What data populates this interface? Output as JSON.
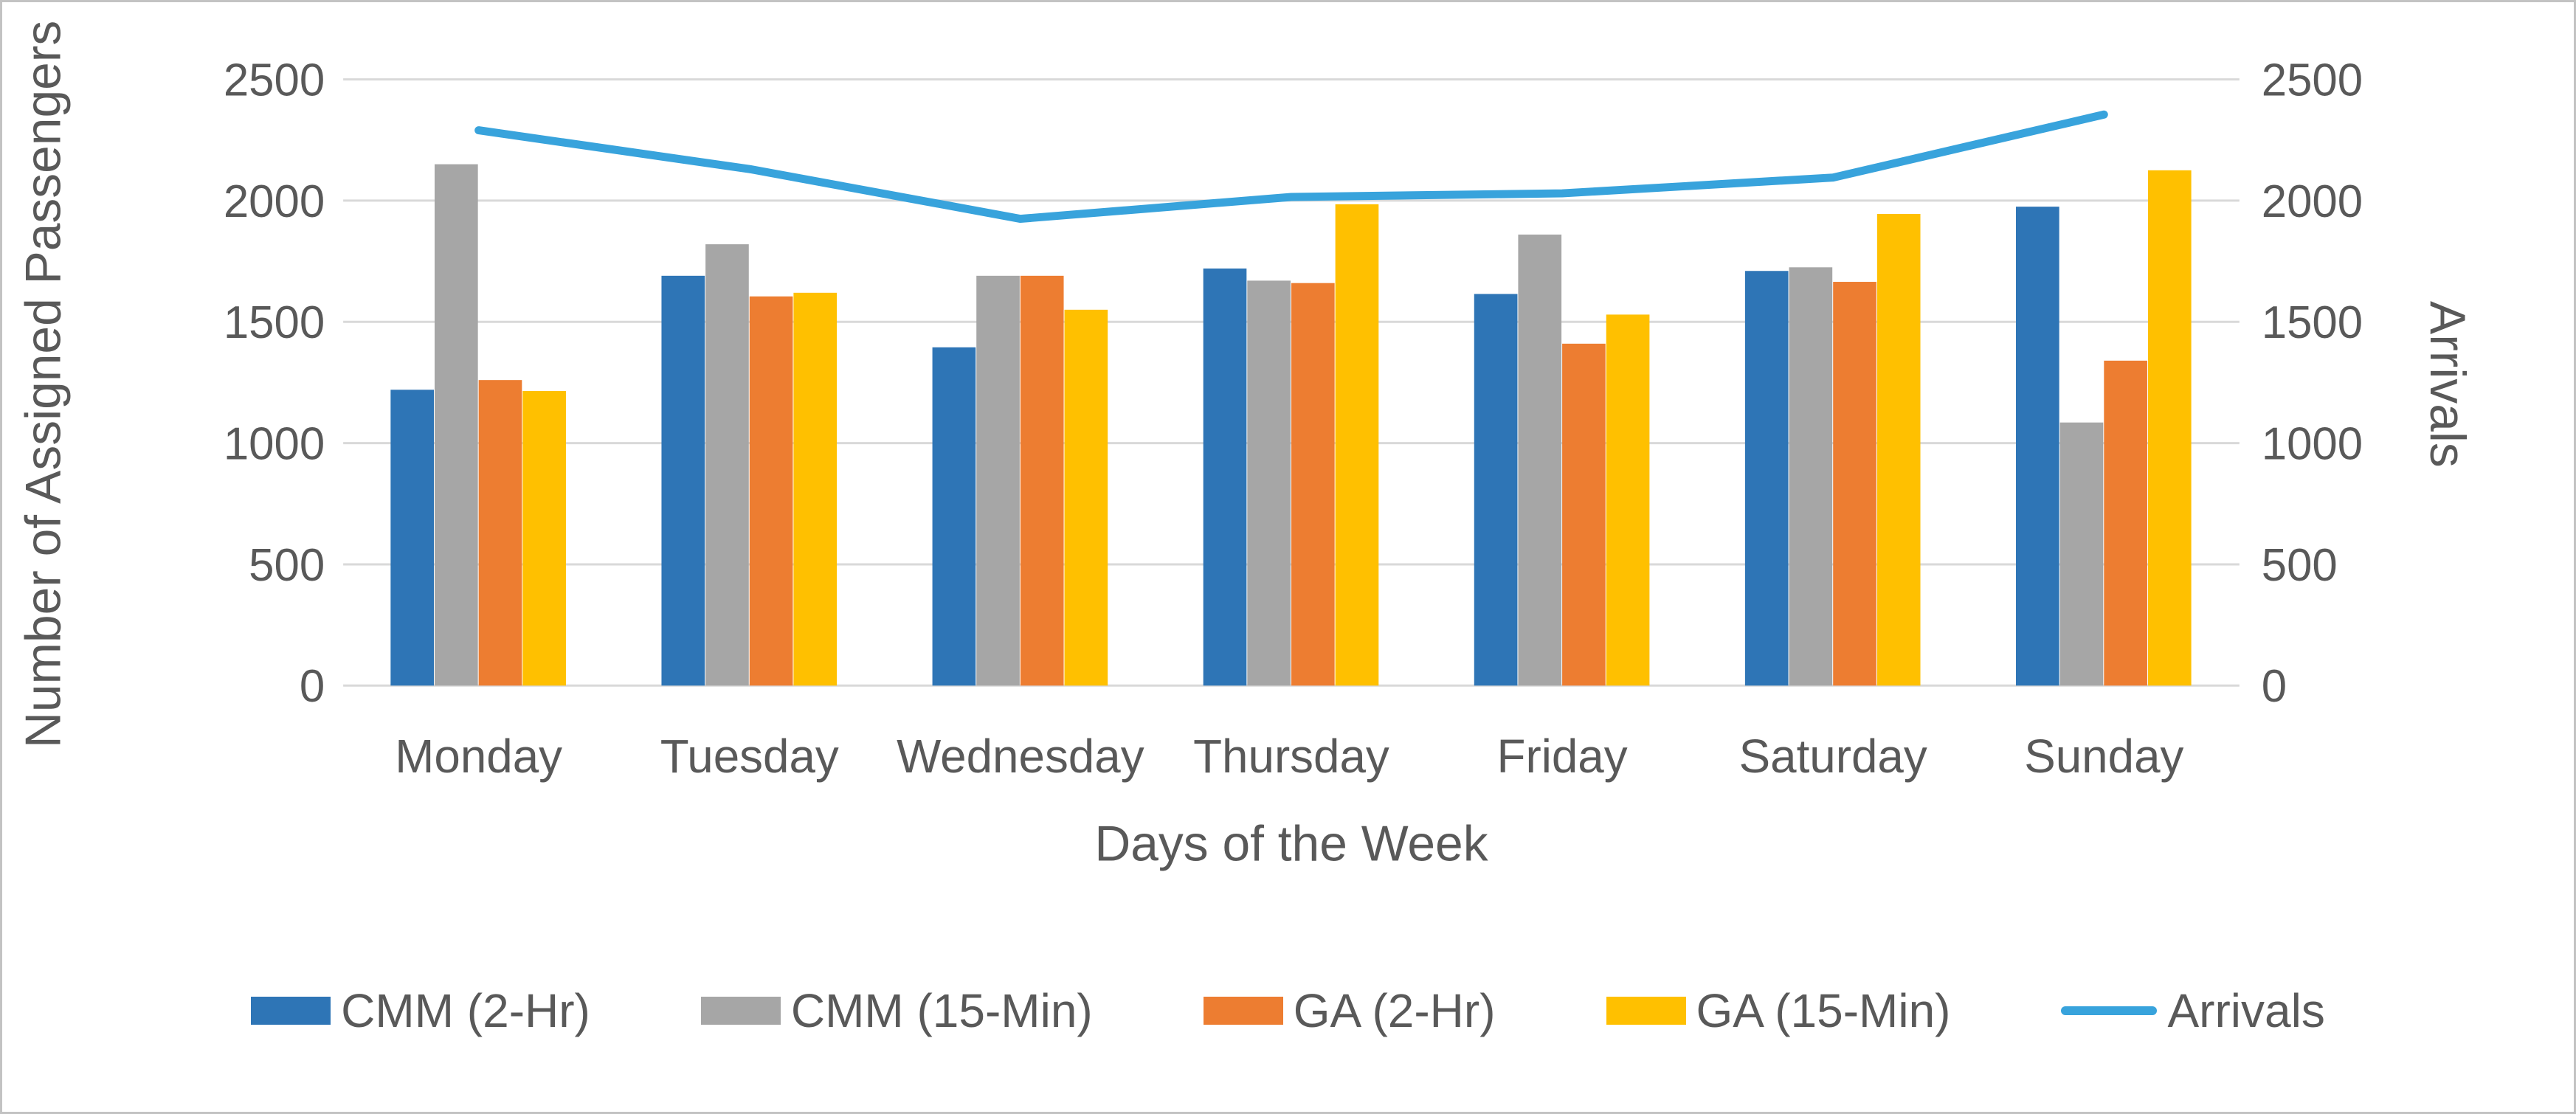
{
  "chart_data": {
    "type": "bar+line",
    "title": "",
    "xlabel": "Days of the Week",
    "ylabel_left": "Number of Assigned Passengers",
    "ylabel_right": "Arrivals",
    "ylim_left": [
      0,
      2500
    ],
    "ylim_right": [
      0,
      2500
    ],
    "yticks": [
      0,
      500,
      1000,
      1500,
      2000,
      2500
    ],
    "grid": true,
    "legend_position": "bottom",
    "categories": [
      "Monday",
      "Tuesday",
      "Wednesday",
      "Thursday",
      "Friday",
      "Saturday",
      "Sunday"
    ],
    "series": [
      {
        "name": "CMM (2-Hr)",
        "color": "#2E75B6",
        "values": [
          1220,
          1690,
          1395,
          1720,
          1615,
          1710,
          1975
        ]
      },
      {
        "name": "CMM (15-Min)",
        "color": "#A6A6A6",
        "values": [
          2150,
          1820,
          1690,
          1670,
          1860,
          1725,
          1085
        ]
      },
      {
        "name": "GA (2-Hr)",
        "color": "#ED7D31",
        "values": [
          1260,
          1605,
          1690,
          1660,
          1410,
          1665,
          1340
        ]
      },
      {
        "name": "GA (15-Min)",
        "color": "#FFC000",
        "values": [
          1215,
          1620,
          1550,
          1985,
          1530,
          1945,
          2125
        ]
      }
    ],
    "line_series": {
      "name": "Arrivals",
      "color": "#38A3DC",
      "values": [
        2290,
        2130,
        1925,
        2015,
        2030,
        2095,
        2355
      ]
    },
    "colors": {
      "text": "#595959",
      "gridline": "#D9D9D9",
      "figure_border": "#C3C3C3"
    }
  }
}
